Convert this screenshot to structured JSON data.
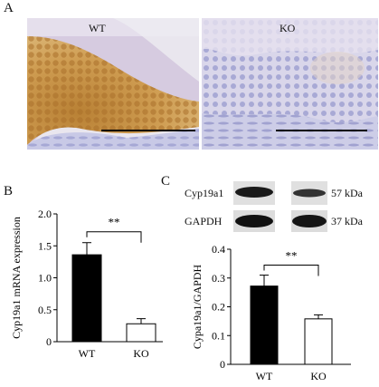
{
  "figure": {
    "panels": {
      "a": {
        "letter": "A",
        "left_label": "WT",
        "right_label": "KO"
      },
      "b": {
        "letter": "B"
      },
      "c": {
        "letter": "C"
      }
    }
  },
  "western_blot": {
    "rows": [
      {
        "protein": "Cyp19a1",
        "size": "57 kDa"
      },
      {
        "protein": "GAPDH",
        "size": "37 kDa"
      }
    ]
  },
  "colors": {
    "wt_bar": "#000000",
    "ko_bar": "#ffffff",
    "wt_tissue": "#c9953f",
    "ko_tissue": "#b3b5da"
  },
  "chart_data": [
    {
      "type": "bar",
      "title": "",
      "xlabel": "",
      "ylabel": "Cyp19a1 mRNA expression",
      "categories": [
        "WT",
        "KO"
      ],
      "values": [
        1.36,
        0.28
      ],
      "error": [
        0.19,
        0.08
      ],
      "ylim": [
        0,
        2.0
      ],
      "yticks": [
        "0",
        "0.5",
        "1.0",
        "1.5",
        "2.0"
      ],
      "yticks_values": [
        0,
        0.5,
        1.0,
        1.5,
        2.0
      ],
      "significance": "**",
      "grid": false
    },
    {
      "type": "bar",
      "title": "",
      "xlabel": "",
      "ylabel": "Cypa19a1/GAPDH",
      "categories": [
        "WT",
        "KO"
      ],
      "values": [
        0.272,
        0.158
      ],
      "error": [
        0.038,
        0.014
      ],
      "ylim": [
        0,
        0.4
      ],
      "yticks": [
        "0",
        "0.1",
        "0.2",
        "0.3",
        "0.4"
      ],
      "yticks_values": [
        0,
        0.1,
        0.2,
        0.3,
        0.4
      ],
      "significance": "**",
      "grid": false
    }
  ]
}
